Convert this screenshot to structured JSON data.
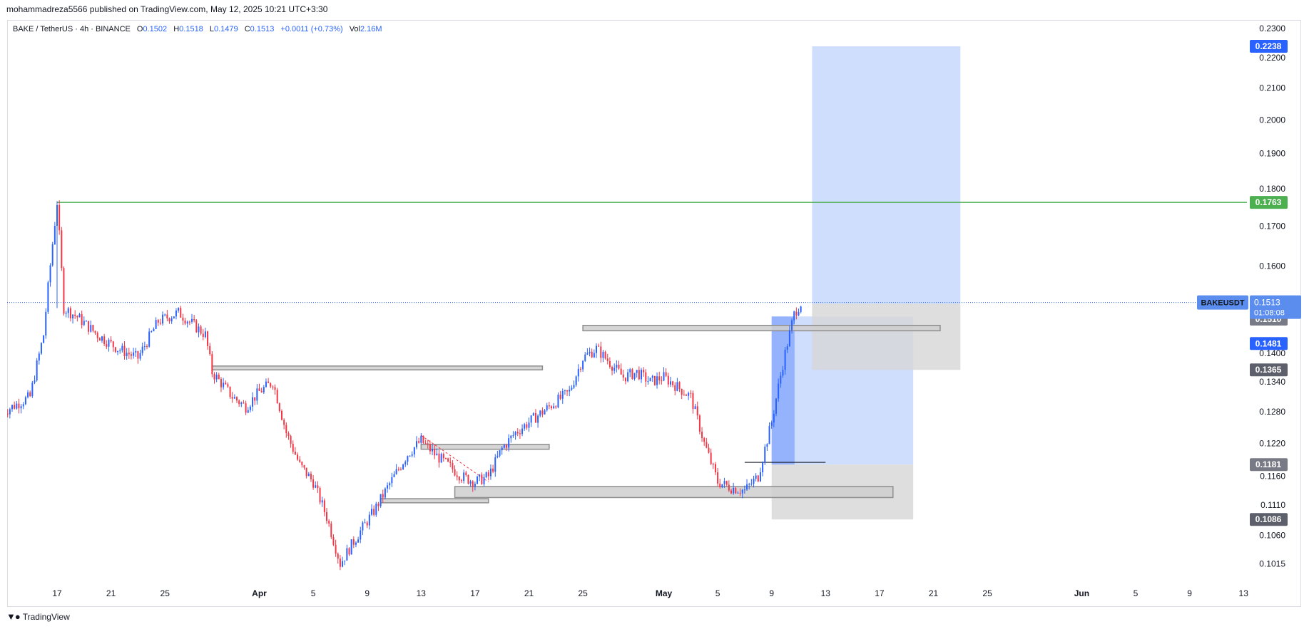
{
  "publisher": "mohammadreza5566 published on TradingView.com, May 12, 2025 10:21 UTC+3:30",
  "legend": {
    "symbol": "BAKE / TetherUS · 4h · BINANCE",
    "open_label": "O",
    "open": "0.1502",
    "high_label": "H",
    "high": "0.1518",
    "low_label": "L",
    "low": "0.1479",
    "close_label": "C",
    "close": "0.1513",
    "change": "+0.0011 (+0.73%)",
    "vol_label": "Vol",
    "vol": "2.16M"
  },
  "footer": {
    "brand": "TradingView",
    "logo": "tradingview-logo-icon"
  },
  "colors": {
    "up": "#2962ff",
    "down": "#f23645",
    "resistance": "#4caf50",
    "target_zone": "#bfd3fb",
    "stop_zone": "#d6d6d6",
    "zone_bar": "#cfcfcf"
  },
  "chart_data": {
    "type": "candlestick",
    "symbol": "BAKEUSDT",
    "timeframe": "4h",
    "ylim": [
      0.1,
      0.2325
    ],
    "price_ticks": [
      "0.2300",
      "0.2200",
      "0.2100",
      "0.2000",
      "0.1900",
      "0.1800",
      "0.1700",
      "0.1600",
      "0.1400",
      "0.1340",
      "0.1280",
      "0.1220",
      "0.1160",
      "0.1110",
      "0.1060",
      "0.1015"
    ],
    "time_ticks": [
      {
        "label": "17",
        "day": 17,
        "bold": false
      },
      {
        "label": "21",
        "day": 21,
        "bold": false
      },
      {
        "label": "25",
        "day": 25,
        "bold": false
      },
      {
        "label": "Apr",
        "day": 32,
        "bold": true
      },
      {
        "label": "5",
        "day": 36,
        "bold": false
      },
      {
        "label": "9",
        "day": 40,
        "bold": false
      },
      {
        "label": "13",
        "day": 44,
        "bold": false
      },
      {
        "label": "17",
        "day": 48,
        "bold": false
      },
      {
        "label": "21",
        "day": 52,
        "bold": false
      },
      {
        "label": "25",
        "day": 56,
        "bold": false
      },
      {
        "label": "May",
        "day": 62,
        "bold": true
      },
      {
        "label": "5",
        "day": 66,
        "bold": false
      },
      {
        "label": "9",
        "day": 70,
        "bold": false
      },
      {
        "label": "13",
        "day": 74,
        "bold": false
      },
      {
        "label": "17",
        "day": 78,
        "bold": false
      },
      {
        "label": "21",
        "day": 82,
        "bold": false
      },
      {
        "label": "25",
        "day": 86,
        "bold": false
      },
      {
        "label": "Jun",
        "day": 93,
        "bold": true
      },
      {
        "label": "5",
        "day": 97,
        "bold": false
      },
      {
        "label": "9",
        "day": 101,
        "bold": false
      },
      {
        "label": "13",
        "day": 105,
        "bold": false
      }
    ],
    "price_path": [
      [
        13,
        0.128
      ],
      [
        15,
        0.131
      ],
      [
        16,
        0.144
      ],
      [
        17,
        0.1763
      ],
      [
        17.5,
        0.15
      ],
      [
        18.5,
        0.148
      ],
      [
        20,
        0.144
      ],
      [
        21.5,
        0.141
      ],
      [
        23,
        0.139
      ],
      [
        24.5,
        0.147
      ],
      [
        26,
        0.149
      ],
      [
        28,
        0.144
      ],
      [
        28.5,
        0.136
      ],
      [
        30,
        0.131
      ],
      [
        31,
        0.129
      ],
      [
        32,
        0.132
      ],
      [
        33,
        0.134
      ],
      [
        34,
        0.124
      ],
      [
        35,
        0.118
      ],
      [
        36,
        0.115
      ],
      [
        37,
        0.109
      ],
      [
        38,
        0.1015
      ],
      [
        39,
        0.105
      ],
      [
        40.5,
        0.11
      ],
      [
        42,
        0.116
      ],
      [
        43,
        0.12
      ],
      [
        44,
        0.1225
      ],
      [
        45,
        0.12
      ],
      [
        46,
        0.118
      ],
      [
        47,
        0.116
      ],
      [
        48,
        0.115
      ],
      [
        49,
        0.116
      ],
      [
        50,
        0.121
      ],
      [
        51,
        0.124
      ],
      [
        52,
        0.126
      ],
      [
        53,
        0.128
      ],
      [
        54,
        0.13
      ],
      [
        55,
        0.132
      ],
      [
        56,
        0.139
      ],
      [
        57,
        0.141
      ],
      [
        58,
        0.138
      ],
      [
        59,
        0.135
      ],
      [
        60,
        0.136
      ],
      [
        61,
        0.134
      ],
      [
        62,
        0.135
      ],
      [
        63,
        0.133
      ],
      [
        64,
        0.131
      ],
      [
        65,
        0.122
      ],
      [
        66,
        0.115
      ],
      [
        67,
        0.114
      ],
      [
        68,
        0.1135
      ],
      [
        69,
        0.116
      ],
      [
        70,
        0.126
      ],
      [
        71,
        0.14
      ],
      [
        71.7,
        0.149
      ],
      [
        72.2,
        0.1513
      ]
    ],
    "resistance_line": {
      "price": 0.1763,
      "from_day": 17,
      "label": "0.1763"
    },
    "current_price": {
      "symbol": "BAKEUSDT",
      "price": "0.1513",
      "countdown": "01:08:08"
    },
    "axis_labels": [
      {
        "text": "0.2238",
        "price": 0.2238,
        "color": "#2962ff"
      },
      {
        "text": "0.1763",
        "price": 0.1763,
        "color": "#4caf50"
      },
      {
        "text": "0.1510",
        "price": 0.1475,
        "color": "#787b86"
      },
      {
        "text": "0.1481",
        "price": 0.1421,
        "color": "#2962ff"
      },
      {
        "text": "0.1365",
        "price": 0.1365,
        "color": "#5d606b"
      },
      {
        "text": "0.1181",
        "price": 0.1181,
        "color": "#787b86"
      },
      {
        "text": "0.1086",
        "price": 0.1086,
        "color": "#5d606b"
      }
    ],
    "positions": [
      {
        "name": "long-position-1",
        "from_day": 70,
        "to_day": 80.5,
        "entry": 0.1181,
        "target": 0.1481,
        "stop": 0.1086,
        "fill_from_day": 71.7
      },
      {
        "name": "long-position-2",
        "from_day": 73,
        "to_day": 84,
        "entry": 0.151,
        "target": 0.2238,
        "stop": 0.1365
      }
    ],
    "zones": [
      {
        "name": "zone-upper-right",
        "from_day": 56,
        "to_day": 82.5,
        "top": 0.1461,
        "bottom": 0.1449
      },
      {
        "name": "zone-late-march",
        "from_day": 28.5,
        "to_day": 53,
        "top": 0.1373,
        "bottom": 0.1365
      },
      {
        "name": "zone-mid-april",
        "from_day": 44,
        "to_day": 53.5,
        "top": 0.1218,
        "bottom": 0.1209
      },
      {
        "name": "zone-wide-support",
        "from_day": 46.5,
        "to_day": 79,
        "top": 0.1142,
        "bottom": 0.1123
      },
      {
        "name": "zone-lower-left",
        "from_day": 41,
        "to_day": 49,
        "top": 0.1121,
        "bottom": 0.1114
      }
    ],
    "markers": [
      {
        "name": "marker-line-black",
        "from_day": 68,
        "to_day": 74,
        "price": 0.1185
      },
      {
        "name": "marker-dashed-trend",
        "from_day": 44,
        "to_day": 49,
        "price_from": 0.1235,
        "price_to": 0.115
      }
    ]
  }
}
